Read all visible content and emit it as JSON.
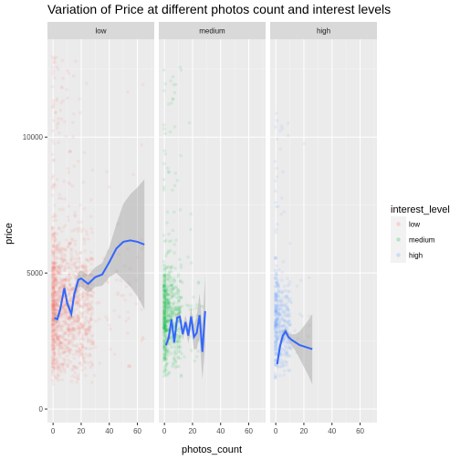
{
  "chart_data": {
    "type": "scatter",
    "title": "Variation of Price at different photos count and interest levels",
    "xlabel": "photos_count",
    "ylabel": "price",
    "xlim": [
      -4,
      72
    ],
    "ylim": [
      -500,
      13600
    ],
    "x_ticks": [
      0,
      20,
      40,
      60
    ],
    "y_ticks": [
      0,
      5000,
      10000
    ],
    "y_tick_labels": [
      "0",
      "5000",
      "10000"
    ],
    "grid": true,
    "facets": [
      "low",
      "medium",
      "high"
    ],
    "legend": {
      "title": "interest_level",
      "placement": "right",
      "entries": [
        "low",
        "medium",
        "high"
      ]
    },
    "series": [
      {
        "name": "low",
        "color": "#F8766D",
        "scatter": {
          "x_min": 0,
          "x_max": 65,
          "y_core": [
            1200,
            6500
          ],
          "y_extra_max": 13000
        },
        "smooth_x": [
          1,
          3,
          5,
          8,
          10,
          13,
          15,
          18,
          20,
          25,
          30,
          35,
          40,
          45,
          50,
          55,
          60,
          65
        ],
        "smooth_y": [
          3350,
          3300,
          3650,
          4450,
          3900,
          3500,
          4200,
          4750,
          4800,
          4600,
          4850,
          4950,
          5400,
          5900,
          6150,
          6200,
          6150,
          6050
        ],
        "band_halfwidth": [
          150,
          150,
          150,
          150,
          180,
          220,
          250,
          280,
          300,
          320,
          360,
          420,
          550,
          900,
          1400,
          1700,
          2000,
          2400
        ]
      },
      {
        "name": "medium",
        "color": "#00BA38",
        "scatter": {
          "x_min": 0,
          "x_max": 28,
          "y_core": [
            1400,
            5500
          ],
          "y_extra_max": 12700
        },
        "smooth_x": [
          1,
          3,
          5,
          7,
          9,
          11,
          13,
          15,
          17,
          19,
          21,
          23,
          25,
          27,
          29
        ],
        "smooth_y": [
          2350,
          2600,
          3300,
          2450,
          3350,
          3400,
          2750,
          3200,
          2700,
          3400,
          2650,
          2800,
          3450,
          2100,
          3600
        ],
        "band_halfwidth": [
          200,
          160,
          150,
          150,
          160,
          180,
          220,
          260,
          300,
          350,
          450,
          600,
          800,
          1000,
          1300
        ]
      },
      {
        "name": "high",
        "color": "#619CFF",
        "scatter": {
          "x_min": 0,
          "x_max": 25,
          "y_core": [
            1400,
            5000
          ],
          "y_extra_max": 11000
        },
        "smooth_x": [
          1,
          3,
          5,
          7,
          9,
          11,
          14,
          17,
          20,
          23,
          26
        ],
        "smooth_y": [
          1650,
          2300,
          2700,
          2850,
          2650,
          2550,
          2450,
          2350,
          2300,
          2250,
          2200
        ],
        "band_halfwidth": [
          250,
          180,
          140,
          130,
          140,
          200,
          300,
          500,
          750,
          1000,
          1300
        ]
      }
    ]
  }
}
